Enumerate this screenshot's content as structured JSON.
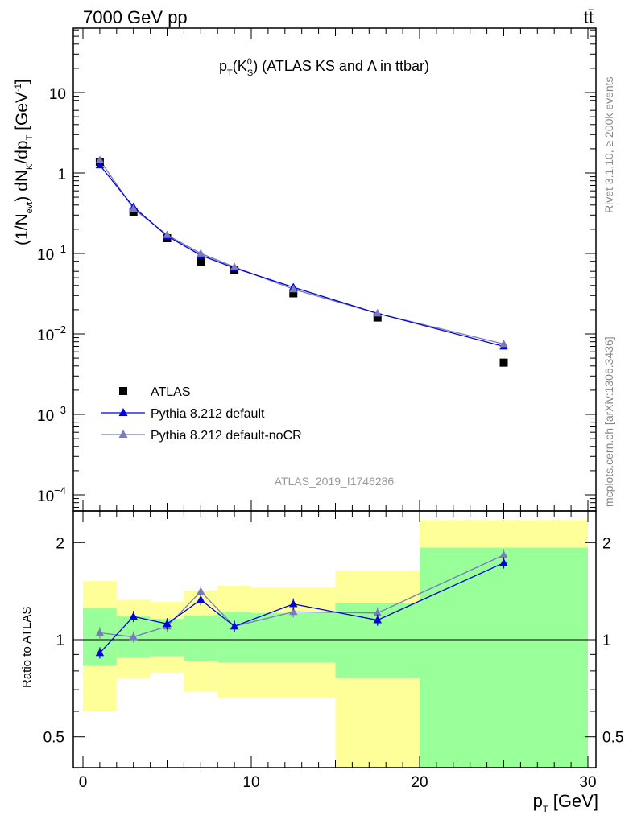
{
  "header": {
    "left": "7000 GeV pp",
    "right": "tt̄"
  },
  "side": {
    "rivet": "Rivet 3.1.10, ≥ 200k events",
    "mcplots": "mcplots.cern.ch [arXiv:1306.3436]"
  },
  "watermark": "ATLAS_2019_I1746286",
  "title": {
    "p": "p",
    "t": "T",
    "k": "(K",
    "zero": "0",
    "s": "S",
    "rest": ") (ATLAS KS and Λ in ttbar)"
  },
  "ylabel_main": {
    "a": "(1/N",
    "evt": "evt",
    "b": ") dN",
    "k": "K",
    "c": "/dp",
    "t": "T",
    "d": " [GeV",
    "m1": "-1",
    "e": "]"
  },
  "ylabel_ratio": "Ratio to ATLAS",
  "xlabel": {
    "p": "p",
    "t": "T",
    "rest": " [GeV]"
  },
  "legend": [
    "ATLAS",
    "Pythia 8.212 default",
    "Pythia 8.212 default-noCR"
  ],
  "colors": {
    "atlas": "#000000",
    "default": "#0000dd",
    "nocr": "#7a7abf",
    "band_inner": "#99ff99",
    "band_outer": "#ffff99"
  },
  "chart_data": [
    {
      "type": "scatter",
      "title": "pT(K0S) (ATLAS KS and Λ in ttbar)",
      "xlabel": "pT [GeV]",
      "ylabel": "(1/Nevt) dNK/dpT [GeV-1]",
      "yscale": "log",
      "xlim": [
        -1,
        31
      ],
      "ylim": [
        7e-05,
        70
      ],
      "y_ticks": [
        {
          "v": 0.0001,
          "b": "10",
          "e": "−4"
        },
        {
          "v": 0.001,
          "b": "10",
          "e": "−3"
        },
        {
          "v": 0.01,
          "b": "10",
          "e": "−2"
        },
        {
          "v": 0.1,
          "b": "10",
          "e": "−1"
        },
        {
          "v": 1,
          "b": "1",
          "e": ""
        },
        {
          "v": 10,
          "b": "10",
          "e": ""
        }
      ],
      "x": [
        1,
        3,
        5,
        7,
        9,
        12.5,
        17.5,
        25
      ],
      "series": [
        {
          "name": "ATLAS",
          "values": [
            1.38,
            0.33,
            0.155,
            0.078,
            0.062,
            0.032,
            0.016,
            0.0044
          ]
        },
        {
          "name": "Pythia 8.212 default",
          "values": [
            1.25,
            0.38,
            0.165,
            0.095,
            0.066,
            0.038,
            0.018,
            0.007
          ]
        },
        {
          "name": "Pythia 8.212 default-noCR",
          "values": [
            1.45,
            0.36,
            0.17,
            0.1,
            0.068,
            0.036,
            0.018,
            0.0075
          ]
        }
      ]
    },
    {
      "type": "scatter",
      "ylabel": "Ratio to ATLAS",
      "xlabel": "pT [GeV]",
      "xlim": [
        -1,
        31
      ],
      "ylim": [
        0.36,
        2.35
      ],
      "x_ticks": [
        0,
        10,
        20,
        30
      ],
      "y_ticks": [
        0.5,
        1,
        2
      ],
      "x": [
        1,
        3,
        5,
        7,
        9,
        12.5,
        17.5,
        25
      ],
      "bins": [
        [
          0,
          2
        ],
        [
          2,
          4
        ],
        [
          4,
          6
        ],
        [
          6,
          8
        ],
        [
          8,
          10
        ],
        [
          10,
          15
        ],
        [
          15,
          20
        ],
        [
          20,
          30
        ]
      ],
      "band_inner": [
        [
          0.83,
          1.25
        ],
        [
          0.88,
          1.18
        ],
        [
          0.89,
          1.16
        ],
        [
          0.86,
          1.19
        ],
        [
          0.85,
          1.22
        ],
        [
          0.85,
          1.21
        ],
        [
          0.76,
          1.3
        ],
        [
          0.36,
          1.93
        ]
      ],
      "band_outer": [
        [
          0.6,
          1.52
        ],
        [
          0.76,
          1.33
        ],
        [
          0.79,
          1.31
        ],
        [
          0.69,
          1.42
        ],
        [
          0.66,
          1.47
        ],
        [
          0.66,
          1.45
        ],
        [
          0.4,
          1.64
        ],
        [
          0.36,
          2.35
        ]
      ],
      "series": [
        {
          "name": "Pythia 8.212 default",
          "values": [
            0.91,
            1.18,
            1.12,
            1.33,
            1.1,
            1.29,
            1.15,
            1.73
          ]
        },
        {
          "name": "Pythia 8.212 default-noCR",
          "values": [
            1.05,
            1.02,
            1.1,
            1.41,
            1.1,
            1.22,
            1.21,
            1.83
          ]
        }
      ]
    }
  ]
}
